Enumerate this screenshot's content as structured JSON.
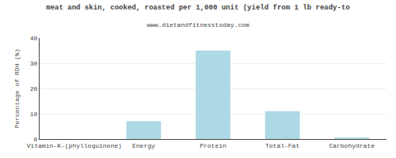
{
  "chart_data": {
    "type": "bar",
    "title": "meat and skin, cooked, roasted per 1,000 unit (yield from 1 lb ready-to",
    "subtitle": "www.dietandfitnesstoday.com",
    "ylabel": "Percentage of RDH (%)",
    "categories": [
      "Vitamin-K-(phylloquinone)",
      "Energy",
      "Protein",
      "Total-Fat",
      "Carbohydrate"
    ],
    "values": [
      0,
      7,
      35,
      11,
      0.5
    ],
    "color": "#add8e6",
    "ylim": [
      0,
      40
    ],
    "yticks": [
      0,
      10,
      20,
      30,
      40
    ],
    "grid": true
  }
}
